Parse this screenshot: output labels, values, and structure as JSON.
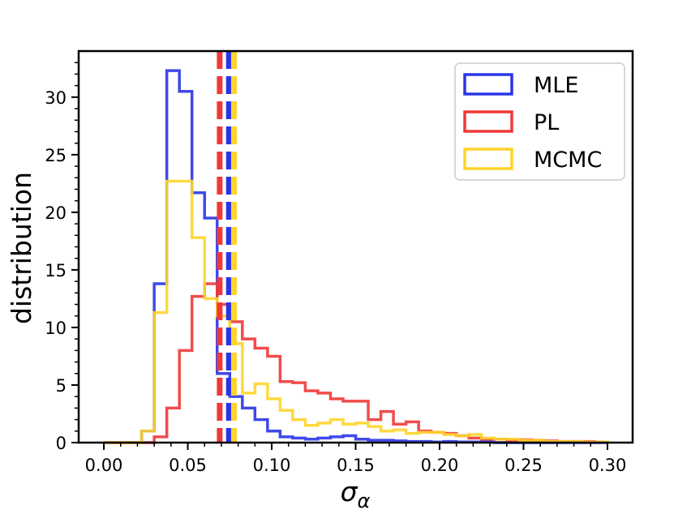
{
  "chart_data": {
    "type": "histogram",
    "title": "",
    "xlabel": "σ",
    "xlabel_subscript": "α",
    "ylabel": "distribution",
    "xlim": [
      -0.015,
      0.315
    ],
    "ylim": [
      0,
      34
    ],
    "xticks": [
      0.0,
      0.05,
      0.1,
      0.15,
      0.2,
      0.25,
      0.3
    ],
    "xtick_labels": [
      "0.00",
      "0.05",
      "0.10",
      "0.15",
      "0.20",
      "0.25",
      "0.30"
    ],
    "yticks": [
      0,
      5,
      10,
      15,
      20,
      25,
      30
    ],
    "ytick_labels": [
      "0",
      "5",
      "10",
      "15",
      "20",
      "25",
      "30"
    ],
    "legend_position": "top-right",
    "series": [
      {
        "name": "MLE",
        "color": "#2a35e6",
        "mean_line": 0.0745,
        "bins": [
          [
            0.0,
            0.0
          ],
          [
            0.0225,
            1.0
          ],
          [
            0.03,
            13.8
          ],
          [
            0.0375,
            32.3
          ],
          [
            0.045,
            30.5
          ],
          [
            0.0525,
            21.7
          ],
          [
            0.06,
            19.5
          ],
          [
            0.0675,
            6.0
          ],
          [
            0.075,
            4.0
          ],
          [
            0.0825,
            3.0
          ],
          [
            0.09,
            2.0
          ],
          [
            0.0975,
            1.0
          ],
          [
            0.105,
            0.5
          ],
          [
            0.1125,
            0.4
          ],
          [
            0.12,
            0.3
          ],
          [
            0.1275,
            0.4
          ],
          [
            0.135,
            0.5
          ],
          [
            0.1425,
            0.6
          ],
          [
            0.15,
            0.3
          ],
          [
            0.1575,
            0.2
          ],
          [
            0.165,
            0.2
          ],
          [
            0.1725,
            0.15
          ],
          [
            0.18,
            0.1
          ],
          [
            0.1875,
            0.1
          ],
          [
            0.195,
            0.05
          ],
          [
            0.2025,
            0.1
          ],
          [
            0.21,
            0.05
          ],
          [
            0.2175,
            0.05
          ],
          [
            0.225,
            0.05
          ],
          [
            0.2325,
            0.0
          ],
          [
            0.24,
            0.0
          ],
          [
            0.2475,
            0.0
          ],
          [
            0.255,
            0.0
          ],
          [
            0.2625,
            0.0
          ],
          [
            0.27,
            0.0
          ],
          [
            0.2775,
            0.0
          ],
          [
            0.285,
            0.0
          ],
          [
            0.2925,
            0.0
          ],
          [
            0.3,
            null
          ]
        ]
      },
      {
        "name": "PL",
        "color": "#f03838",
        "mean_line": 0.069,
        "bins": [
          [
            0.0,
            0.0
          ],
          [
            0.0225,
            0.0
          ],
          [
            0.03,
            0.5
          ],
          [
            0.0375,
            3.0
          ],
          [
            0.045,
            8.0
          ],
          [
            0.0525,
            12.7
          ],
          [
            0.06,
            13.8
          ],
          [
            0.0675,
            12.0
          ],
          [
            0.075,
            10.5
          ],
          [
            0.0825,
            9.0
          ],
          [
            0.09,
            8.2
          ],
          [
            0.0975,
            7.5
          ],
          [
            0.105,
            5.3
          ],
          [
            0.1125,
            5.2
          ],
          [
            0.12,
            4.5
          ],
          [
            0.1275,
            4.3
          ],
          [
            0.135,
            3.8
          ],
          [
            0.1425,
            3.6
          ],
          [
            0.15,
            3.6
          ],
          [
            0.1575,
            2.0
          ],
          [
            0.165,
            2.7
          ],
          [
            0.1725,
            1.6
          ],
          [
            0.18,
            1.8
          ],
          [
            0.1875,
            1.0
          ],
          [
            0.195,
            0.9
          ],
          [
            0.2025,
            0.8
          ],
          [
            0.21,
            0.6
          ],
          [
            0.2175,
            0.4
          ],
          [
            0.225,
            0.3
          ],
          [
            0.2325,
            0.3
          ],
          [
            0.24,
            0.2
          ],
          [
            0.2475,
            0.25
          ],
          [
            0.255,
            0.2
          ],
          [
            0.2625,
            0.15
          ],
          [
            0.27,
            0.1
          ],
          [
            0.2775,
            0.1
          ],
          [
            0.285,
            0.1
          ],
          [
            0.2925,
            0.05
          ],
          [
            0.3,
            null
          ]
        ]
      },
      {
        "name": "MCMC",
        "color": "#ffd42a",
        "mean_line": 0.0775,
        "bins": [
          [
            0.0,
            0.0
          ],
          [
            0.0225,
            1.0
          ],
          [
            0.03,
            11.3
          ],
          [
            0.0375,
            22.7
          ],
          [
            0.045,
            22.7
          ],
          [
            0.0525,
            17.8
          ],
          [
            0.06,
            12.5
          ],
          [
            0.0675,
            11.0
          ],
          [
            0.075,
            8.6
          ],
          [
            0.0825,
            4.3
          ],
          [
            0.09,
            5.1
          ],
          [
            0.0975,
            3.8
          ],
          [
            0.105,
            2.8
          ],
          [
            0.1125,
            2.0
          ],
          [
            0.12,
            1.5
          ],
          [
            0.1275,
            1.7
          ],
          [
            0.135,
            2.0
          ],
          [
            0.1425,
            1.6
          ],
          [
            0.15,
            1.7
          ],
          [
            0.1575,
            1.4
          ],
          [
            0.165,
            1.0
          ],
          [
            0.1725,
            1.1
          ],
          [
            0.18,
            0.8
          ],
          [
            0.1875,
            0.9
          ],
          [
            0.195,
            0.9
          ],
          [
            0.2025,
            0.7
          ],
          [
            0.21,
            0.6
          ],
          [
            0.2175,
            0.7
          ],
          [
            0.225,
            0.4
          ],
          [
            0.2325,
            0.3
          ],
          [
            0.24,
            0.3
          ],
          [
            0.2475,
            0.2
          ],
          [
            0.255,
            0.2
          ],
          [
            0.2625,
            0.1
          ],
          [
            0.27,
            0.1
          ],
          [
            0.2775,
            0.1
          ],
          [
            0.285,
            0.05
          ],
          [
            0.2925,
            0.05
          ],
          [
            0.3,
            null
          ]
        ]
      }
    ]
  }
}
